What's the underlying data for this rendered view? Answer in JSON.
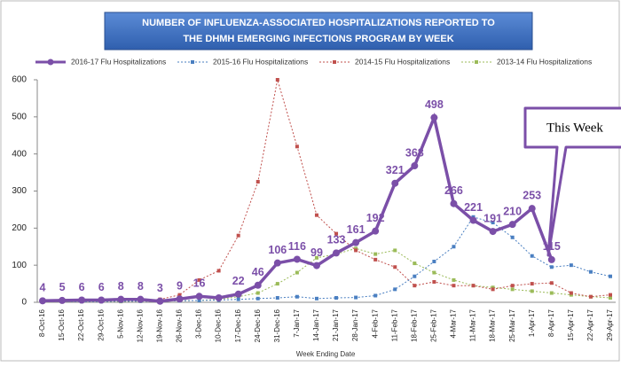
{
  "chart_data": {
    "type": "line",
    "title": [
      "NUMBER OF INFLUENZA-ASSOCIATED HOSPITALIZATIONS REPORTED TO",
      "THE DHMH EMERGING INFECTIONS PROGRAM BY WEEK"
    ],
    "x_label": "Week Ending Date",
    "annotation": "This Week",
    "legend": "top",
    "grid": false,
    "categories": [
      "8-Oct-16",
      "15-Oct-16",
      "22-Oct-16",
      "29-Oct-16",
      "5-Nov-16",
      "12-Nov-16",
      "19-Nov-16",
      "26-Nov-16",
      "3-Dec-16",
      "10-Dec-16",
      "17-Dec-16",
      "24-Dec-16",
      "31-Dec-16",
      "7-Jan-17",
      "14-Jan-17",
      "21-Jan-17",
      "28-Jan-17",
      "4-Feb-17",
      "11-Feb-17",
      "18-Feb-17",
      "25-Feb-17",
      "4-Mar-17",
      "11-Mar-17",
      "18-Mar-17",
      "25-Mar-17",
      "1-Apr-17",
      "8-Apr-17",
      "15-Apr-17",
      "22-Apr-17",
      "29-Apr-17"
    ],
    "ylim": [
      0,
      600
    ],
    "yticks": [
      0,
      100,
      200,
      300,
      400,
      500,
      600
    ],
    "series": [
      {
        "name": "2016-17 Flu Hospitalizations",
        "color": "#7b4fa8",
        "values": [
          4,
          5,
          6,
          6,
          8,
          8,
          3,
          9,
          16,
          12,
          22,
          46,
          106,
          116,
          99,
          133,
          161,
          192,
          321,
          368,
          498,
          266,
          221,
          191,
          210,
          253,
          115,
          null,
          null,
          null
        ],
        "value_labels": [
          "4",
          "5",
          "6",
          "6",
          "8",
          "8",
          "3",
          "9",
          "16",
          null,
          "22",
          "46",
          "106",
          "116",
          "99",
          "133",
          "161",
          "192",
          "321",
          "368",
          "498",
          "266",
          "221",
          "191",
          "210",
          "253",
          "115",
          null,
          null,
          null
        ]
      },
      {
        "name": "2015-16 Flu Hospitalizations",
        "color": "#4a7fc1",
        "values": [
          2,
          2,
          2,
          2,
          3,
          3,
          3,
          4,
          5,
          6,
          8,
          10,
          12,
          15,
          10,
          12,
          13,
          18,
          35,
          70,
          110,
          150,
          230,
          215,
          175,
          125,
          95,
          100,
          82,
          70
        ]
      },
      {
        "name": "2014-15 Flu Hospitalizations",
        "color": "#c0504d",
        "values": [
          2,
          2,
          3,
          3,
          4,
          5,
          8,
          20,
          60,
          85,
          180,
          325,
          600,
          420,
          235,
          185,
          140,
          115,
          95,
          45,
          55,
          45,
          45,
          35,
          45,
          50,
          52,
          25,
          15,
          20
        ]
      },
      {
        "name": "2013-14 Flu Hospitalizations",
        "color": "#9bbb59",
        "values": [
          1,
          1,
          2,
          2,
          2,
          3,
          3,
          4,
          5,
          8,
          15,
          25,
          50,
          80,
          120,
          130,
          145,
          130,
          140,
          105,
          80,
          60,
          45,
          40,
          35,
          30,
          25,
          20,
          15,
          12
        ]
      }
    ]
  }
}
